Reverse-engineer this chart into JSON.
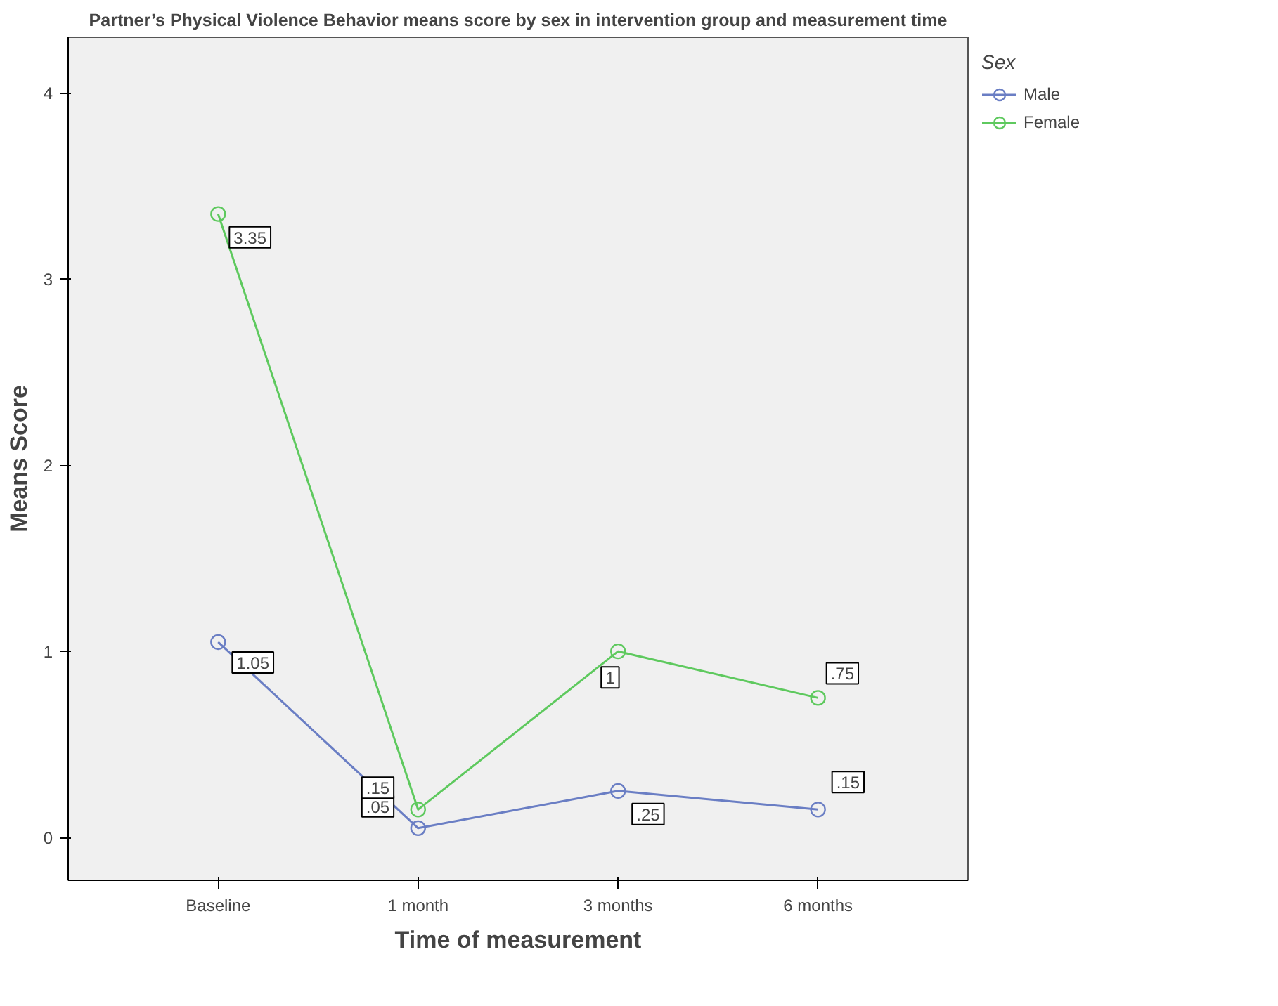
{
  "chart_data": {
    "type": "line",
    "title": "Partner’s Physical Violence Behavior means score by sex in intervention group and measurement time",
    "xlabel": "Time of measurement",
    "ylabel": "Means Score",
    "legend_title": "Sex",
    "categories": [
      "Baseline",
      "1 month",
      "3 months",
      "6 months"
    ],
    "series": [
      {
        "name": "Male",
        "color": "#6a7ec4",
        "values": [
          1.05,
          0.05,
          0.25,
          0.15
        ],
        "value_labels": [
          "1.05",
          ".05",
          ".25",
          ".15"
        ]
      },
      {
        "name": "Female",
        "color": "#5ec95e",
        "values": [
          3.35,
          0.15,
          1,
          0.75
        ],
        "value_labels": [
          "3.35",
          ".15",
          "1",
          ".75"
        ]
      }
    ],
    "ylim": [
      -0.23,
      4.3
    ],
    "yticks": [
      0,
      1,
      2,
      3,
      4
    ],
    "grid": false,
    "legend": "top right",
    "marker": "circle",
    "line_style": "solid"
  }
}
